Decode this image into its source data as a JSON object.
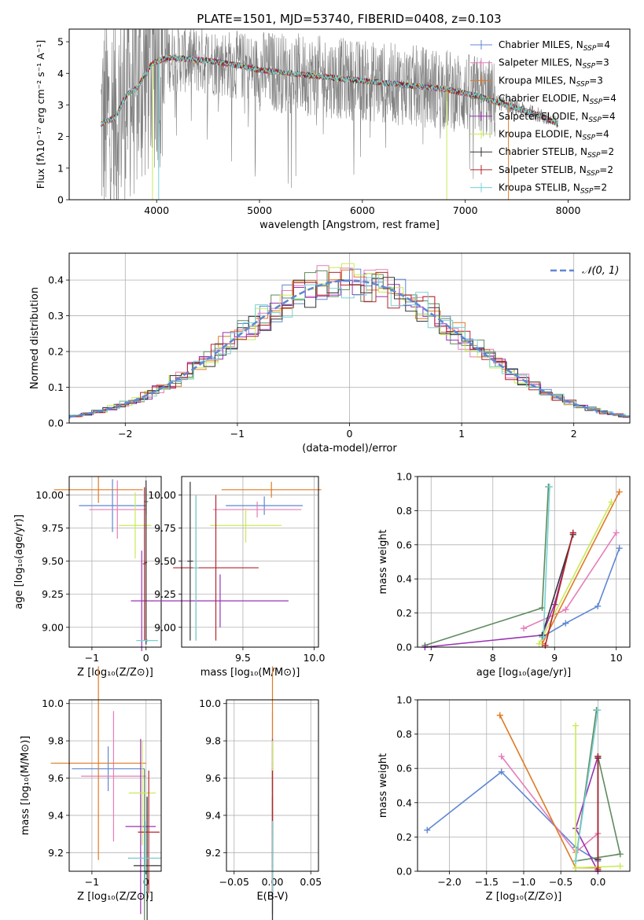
{
  "title": "PLATE=1501, MJD=53740, FIBERID=0408, z=0.103",
  "colors": {
    "CM": "#5f87d3",
    "SM": "#e67db8",
    "KM": "#e07a24",
    "CE": "#5f8a5e",
    "SE": "#9a33b5",
    "KE": "#c8eb57",
    "CS": "#333333",
    "SS": "#b3262e",
    "KS": "#77d1d3",
    "obs": "#808080",
    "gauss": "#5f87d3"
  },
  "chart_data": [
    {
      "id": "spectrum",
      "type": "line",
      "title": "PLATE=1501, MJD=53740, FIBERID=0408, z=0.103",
      "xlabel": "wavelength [Angstrom, rest frame]",
      "ylabel": "Flux [fλ10⁻¹⁷ erg cm⁻² s⁻¹ A⁻¹]",
      "xlim": [
        3150,
        8600
      ],
      "ylim": [
        0,
        5.4
      ],
      "xticks": [
        4000,
        5000,
        6000,
        7000,
        8000
      ],
      "yticks": [
        0,
        1,
        2,
        3,
        4,
        5
      ],
      "legend_position": "top-right",
      "series": [
        {
          "name": "Chabrier MILES, N_SSP=4",
          "key": "CM"
        },
        {
          "name": "Salpeter MILES, N_SSP=3",
          "key": "SM"
        },
        {
          "name": "Kroupa MILES, N_SSP=3",
          "key": "KM"
        },
        {
          "name": "Chabrier ELODIE, N_SSP=4",
          "key": "CE"
        },
        {
          "name": "Salpeter ELODIE, N_SSP=4",
          "key": "SE"
        },
        {
          "name": "Kroupa ELODIE, N_SSP=4",
          "key": "KE"
        },
        {
          "name": "Chabrier STELIB, N_SSP=2",
          "key": "CS"
        },
        {
          "name": "Salpeter STELIB, N_SSP=2",
          "key": "SS"
        },
        {
          "name": "Kroupa STELIB, N_SSP=2",
          "key": "KS"
        }
      ],
      "legend_items": [
        {
          "base": "Chabrier MILES, N",
          "sub": "SSP",
          "tail": "=4",
          "key": "CM"
        },
        {
          "base": "Salpeter MILES, N",
          "sub": "SSP",
          "tail": "=3",
          "key": "SM"
        },
        {
          "base": "Kroupa MILES, N",
          "sub": "SSP",
          "tail": "=3",
          "key": "KM"
        },
        {
          "base": "Chabrier ELODIE, N",
          "sub": "SSP",
          "tail": "=4",
          "key": "CE"
        },
        {
          "base": "Salpeter ELODIE, N",
          "sub": "SSP",
          "tail": "=4",
          "key": "SE"
        },
        {
          "base": "Kroupa ELODIE, N",
          "sub": "SSP",
          "tail": "=4",
          "key": "KE"
        },
        {
          "base": "Chabrier STELIB, N",
          "sub": "SSP",
          "tail": "=2",
          "key": "CS"
        },
        {
          "base": "Salpeter STELIB, N",
          "sub": "SSP",
          "tail": "=2",
          "key": "SS"
        },
        {
          "base": "Kroupa STELIB, N",
          "sub": "SSP",
          "tail": "=2",
          "key": "KS"
        }
      ],
      "model_continuum": [
        [
          3460,
          2.4
        ],
        [
          3600,
          2.6
        ],
        [
          3700,
          3.3
        ],
        [
          3800,
          3.5
        ],
        [
          3950,
          4.3
        ],
        [
          4100,
          4.5
        ],
        [
          4300,
          4.45
        ],
        [
          4500,
          4.4
        ],
        [
          4800,
          4.25
        ],
        [
          5000,
          4.1
        ],
        [
          5300,
          4.0
        ],
        [
          5600,
          3.9
        ],
        [
          5900,
          3.8
        ],
        [
          6200,
          3.7
        ],
        [
          6500,
          3.6
        ],
        [
          6800,
          3.5
        ],
        [
          7100,
          3.3
        ],
        [
          7400,
          3.0
        ],
        [
          7700,
          2.7
        ],
        [
          7900,
          2.4
        ]
      ]
    },
    {
      "id": "residuals",
      "type": "line",
      "xlabel": "(data-model)/error",
      "ylabel": "Normed distribution",
      "xlim": [
        -2.5,
        2.5
      ],
      "ylim": [
        0,
        0.475
      ],
      "xticks": [
        -2,
        -1,
        0,
        1,
        2
      ],
      "yticks": [
        0.0,
        0.1,
        0.2,
        0.3,
        0.4
      ],
      "legend_label": "𝒩(0, 1)",
      "legend_position": "top-right"
    },
    {
      "id": "age_vs_Z",
      "type": "scatter",
      "xlabel": "Z [log₁₀(Z/Z⊙)]",
      "ylabel": "age  [log₁₀(age/yr)]",
      "xlim": [
        -1.42,
        0.28
      ],
      "ylim": [
        8.85,
        10.14
      ],
      "xticks": [
        -1,
        0
      ],
      "yticks": [
        9.0,
        9.25,
        9.5,
        9.75,
        10.0
      ],
      "points": [
        {
          "key": "CM",
          "x": -0.62,
          "y": 9.92,
          "xerr": 0.62,
          "yerr": 0.2
        },
        {
          "key": "SM",
          "x": -0.53,
          "y": 9.89,
          "xerr": 0.52,
          "yerr": 0.22
        },
        {
          "key": "KM",
          "x": -0.88,
          "y": 10.04,
          "xerr": 0.82,
          "yerr": 0.1
        },
        {
          "key": "CE",
          "x": 0.0,
          "y": 9.95,
          "xerr": 0.04,
          "yerr": 0.1
        },
        {
          "key": "SE",
          "x": -0.08,
          "y": 9.2,
          "xerr": 0.2,
          "yerr": 0.38
        },
        {
          "key": "KE",
          "x": -0.2,
          "y": 9.77,
          "xerr": 0.3,
          "yerr": 0.25
        },
        {
          "key": "CS",
          "x": 0.0,
          "y": 9.49,
          "xerr": 0.02,
          "yerr": 0.62
        },
        {
          "key": "SS",
          "x": -0.03,
          "y": 9.48,
          "xerr": 0.03,
          "yerr": 0.58
        },
        {
          "key": "KS",
          "x": 0.02,
          "y": 8.9,
          "xerr": 0.2,
          "yerr": 0.01
        }
      ]
    },
    {
      "id": "age_vs_mass",
      "type": "scatter",
      "xlabel": "mass [log₁₀(M/M⊙)]",
      "xlim": [
        9.07,
        10.03
      ],
      "ylim": [
        8.85,
        10.14
      ],
      "xticks": [
        9.5,
        10.0
      ],
      "yticks": [
        9.0,
        9.25,
        9.5,
        9.75,
        10.0
      ],
      "points": [
        {
          "key": "CM",
          "x": 9.65,
          "y": 9.92,
          "xerr": 0.27,
          "yerr": 0.07
        },
        {
          "key": "SM",
          "x": 9.6,
          "y": 9.89,
          "xerr": 0.31,
          "yerr": 0.06
        },
        {
          "key": "KM",
          "x": 9.7,
          "y": 10.04,
          "xerr": 0.35,
          "yerr": 0.06
        },
        {
          "key": "CE",
          "x": 9.17,
          "y": 9.45,
          "xerr": 0.02,
          "yerr": 0.55
        },
        {
          "key": "SE",
          "x": 9.34,
          "y": 9.2,
          "xerr": 0.48,
          "yerr": 0.2
        },
        {
          "key": "KE",
          "x": 9.52,
          "y": 9.77,
          "xerr": 0.25,
          "yerr": 0.13
        },
        {
          "key": "CS",
          "x": 9.13,
          "y": 9.5,
          "xerr": 0.02,
          "yerr": 0.6
        },
        {
          "key": "SS",
          "x": 9.31,
          "y": 9.45,
          "xerr": 0.3,
          "yerr": 0.55
        },
        {
          "key": "KS",
          "x": 9.17,
          "y": 9.45,
          "xerr": 0.02,
          "yerr": 0.55
        }
      ]
    },
    {
      "id": "mass_weight_vs_age",
      "type": "line",
      "xlabel": "age  [log₁₀(age/yr)]",
      "ylabel": "mass weight",
      "xlim": [
        6.78,
        10.22
      ],
      "ylim": [
        0.0,
        1.0
      ],
      "xticks": [
        7,
        8,
        9,
        10
      ],
      "yticks": [
        0.0,
        0.2,
        0.4,
        0.6,
        0.8,
        1.0
      ],
      "series": [
        {
          "key": "CM",
          "points": [
            [
              8.8,
              0.06
            ],
            [
              9.18,
              0.14
            ],
            [
              9.7,
              0.24
            ],
            [
              10.05,
              0.58
            ]
          ]
        },
        {
          "key": "SM",
          "points": [
            [
              8.5,
              0.11
            ],
            [
              9.18,
              0.22
            ],
            [
              10.0,
              0.67
            ]
          ]
        },
        {
          "key": "KM",
          "points": [
            [
              8.8,
              0.02
            ],
            [
              10.05,
              0.91
            ]
          ]
        },
        {
          "key": "CE",
          "points": [
            [
              6.9,
              0.01
            ],
            [
              8.8,
              0.23
            ],
            [
              8.9,
              0.94
            ]
          ]
        },
        {
          "key": "SE",
          "points": [
            [
              6.9,
              0.0
            ],
            [
              8.8,
              0.07
            ],
            [
              9.0,
              0.25
            ],
            [
              9.3,
              0.67
            ]
          ]
        },
        {
          "key": "KE",
          "points": [
            [
              8.75,
              0.02
            ],
            [
              9.92,
              0.85
            ]
          ]
        },
        {
          "key": "CS",
          "points": [
            [
              8.8,
              0.07
            ],
            [
              9.3,
              0.66
            ]
          ]
        },
        {
          "key": "SS",
          "points": [
            [
              8.85,
              0.01
            ],
            [
              9.3,
              0.67
            ]
          ]
        },
        {
          "key": "KS",
          "points": [
            [
              8.82,
              0.06
            ],
            [
              8.92,
              0.94
            ]
          ]
        }
      ]
    },
    {
      "id": "mass_vs_Z",
      "type": "scatter",
      "xlabel": "Z [log₁₀(Z/Z⊙)]",
      "ylabel": "mass [log₁₀(M/M⊙)]",
      "xlim": [
        -1.42,
        0.28
      ],
      "ylim": [
        9.1,
        10.02
      ],
      "xticks": [
        -1,
        0
      ],
      "yticks": [
        9.2,
        9.4,
        9.6,
        9.8,
        10.0
      ],
      "points": [
        {
          "key": "CM",
          "x": -0.7,
          "y": 9.65,
          "xerr": 0.67,
          "yerr": 0.12
        },
        {
          "key": "SM",
          "x": -0.6,
          "y": 9.61,
          "xerr": 0.6,
          "yerr": 0.35
        },
        {
          "key": "KM",
          "x": -0.88,
          "y": 9.68,
          "xerr": 0.88,
          "yerr": 0.52
        },
        {
          "key": "CE",
          "x": -0.03,
          "y": 9.17,
          "xerr": 0.3,
          "yerr": 0.48
        },
        {
          "key": "SE",
          "x": -0.1,
          "y": 9.34,
          "xerr": 0.28,
          "yerr": 0.47
        },
        {
          "key": "KE",
          "x": -0.07,
          "y": 9.52,
          "xerr": 0.25,
          "yerr": 0.28
        },
        {
          "key": "CS",
          "x": 0.02,
          "y": 9.13,
          "xerr": 0.25,
          "yerr": 0.37
        },
        {
          "key": "SS",
          "x": 0.05,
          "y": 9.31,
          "xerr": 0.2,
          "yerr": 0.33
        },
        {
          "key": "KS",
          "x": -0.02,
          "y": 9.17,
          "xerr": 0.3,
          "yerr": 0.2
        }
      ]
    },
    {
      "id": "mass_vs_EBV",
      "type": "scatter",
      "xlabel": "E(B-V)",
      "xlim": [
        -0.06,
        0.06
      ],
      "ylim": [
        9.1,
        10.02
      ],
      "xticks": [
        -0.05,
        0.0,
        0.05
      ],
      "yticks": [
        9.2,
        9.4,
        9.6,
        9.8,
        10.0
      ],
      "points": [
        {
          "key": "CM",
          "x": 0.0,
          "y": 9.65,
          "yerr": 0.12
        },
        {
          "key": "SM",
          "x": 0.0,
          "y": 9.61,
          "yerr": 0.35
        },
        {
          "key": "KM",
          "x": 0.0,
          "y": 9.68,
          "yerr": 0.52
        },
        {
          "key": "CE",
          "x": 0.0,
          "y": 9.17,
          "yerr": 0.48
        },
        {
          "key": "SE",
          "x": 0.0,
          "y": 9.34,
          "yerr": 0.47
        },
        {
          "key": "KE",
          "x": 0.0,
          "y": 9.52,
          "yerr": 0.28
        },
        {
          "key": "CS",
          "x": 0.0,
          "y": 9.13,
          "yerr": 0.37
        },
        {
          "key": "SS",
          "x": 0.0,
          "y": 9.31,
          "yerr": 0.33
        },
        {
          "key": "KS",
          "x": 0.0,
          "y": 9.17,
          "yerr": 0.2
        }
      ]
    },
    {
      "id": "mass_weight_vs_Z",
      "type": "line",
      "xlabel": "Z [log₁₀(Z/Z⊙)]",
      "ylabel": "mass weight",
      "xlim": [
        -2.43,
        0.43
      ],
      "ylim": [
        0.0,
        1.0
      ],
      "xticks": [
        -2.0,
        -1.5,
        -1.0,
        -0.5,
        0.0
      ],
      "yticks": [
        0.0,
        0.2,
        0.4,
        0.6,
        0.8,
        1.0
      ],
      "series": [
        {
          "key": "CM",
          "points": [
            [
              -2.3,
              0.24
            ],
            [
              -1.3,
              0.58
            ],
            [
              -0.3,
              0.14
            ],
            [
              0.0,
              0.06
            ]
          ]
        },
        {
          "key": "SM",
          "points": [
            [
              -1.3,
              0.67
            ],
            [
              -0.3,
              0.11
            ],
            [
              0.0,
              0.22
            ]
          ]
        },
        {
          "key": "KM",
          "points": [
            [
              -1.32,
              0.91
            ],
            [
              -0.3,
              0.02
            ],
            [
              0.0,
              0.02
            ]
          ]
        },
        {
          "key": "CE",
          "points": [
            [
              -0.02,
              0.94
            ],
            [
              -0.3,
              0.06
            ],
            [
              0.3,
              0.1
            ],
            [
              0.0,
              0.67
            ]
          ]
        },
        {
          "key": "SE",
          "points": [
            [
              0.0,
              0.0
            ],
            [
              -0.3,
              0.25
            ],
            [
              0.0,
              0.67
            ],
            [
              0.0,
              0.07
            ]
          ]
        },
        {
          "key": "KE",
          "points": [
            [
              -0.3,
              0.85
            ],
            [
              -0.3,
              0.02
            ],
            [
              0.3,
              0.03
            ]
          ]
        },
        {
          "key": "CS",
          "points": [
            [
              0.0,
              0.66
            ],
            [
              0.0,
              0.07
            ]
          ]
        },
        {
          "key": "SS",
          "points": [
            [
              0.0,
              0.67
            ],
            [
              0.0,
              0.01
            ]
          ]
        },
        {
          "key": "KS",
          "points": [
            [
              0.0,
              0.94
            ],
            [
              -0.3,
              0.06
            ]
          ]
        }
      ]
    }
  ]
}
